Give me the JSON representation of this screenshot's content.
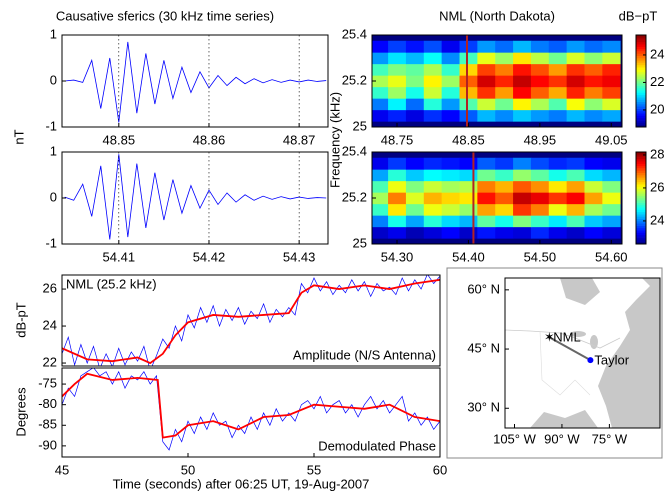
{
  "chart_data": [
    {
      "type": "line",
      "title": "Causative sferics (30 kHz time series)",
      "ylabel": "nT",
      "xlim": [
        48.8437,
        48.8732
      ],
      "ylim": [
        -1,
        1
      ],
      "xticks": [
        48.85,
        48.86,
        48.87
      ],
      "yticks": [
        -1,
        0,
        1
      ],
      "grid": true,
      "series": [
        {
          "color": "#0000ff",
          "x": [
            48.844,
            48.845,
            48.846,
            48.847,
            48.848,
            48.849,
            48.85,
            48.851,
            48.852,
            48.853,
            48.854,
            48.855,
            48.856,
            48.857,
            48.858,
            48.859,
            48.86,
            48.861,
            48.862,
            48.863,
            48.864,
            48.865,
            48.866,
            48.867,
            48.868,
            48.869,
            48.87,
            48.871,
            48.872,
            48.873
          ],
          "values": [
            0,
            0.02,
            -0.03,
            0.45,
            -0.6,
            0.5,
            -0.9,
            0.85,
            -0.7,
            0.6,
            -0.5,
            0.45,
            -0.38,
            0.3,
            -0.25,
            0.2,
            -0.15,
            0.12,
            -0.1,
            0.08,
            -0.06,
            0.05,
            -0.04,
            0.03,
            -0.03,
            0.02,
            -0.02,
            0.02,
            -0.01,
            0.01
          ]
        }
      ]
    },
    {
      "type": "line",
      "xlim": [
        54.4037,
        54.4332
      ],
      "ylim": [
        -1,
        1
      ],
      "xticks": [
        54.41,
        54.42,
        54.43
      ],
      "yticks": [
        -1,
        0,
        1
      ],
      "grid": true,
      "series": [
        {
          "color": "#0000ff",
          "x": [
            54.404,
            54.405,
            54.406,
            54.407,
            54.408,
            54.409,
            54.41,
            54.411,
            54.412,
            54.413,
            54.414,
            54.415,
            54.416,
            54.417,
            54.418,
            54.419,
            54.42,
            54.421,
            54.422,
            54.423,
            54.424,
            54.425,
            54.426,
            54.427,
            54.428,
            54.429,
            54.43,
            54.431,
            54.432,
            54.433
          ],
          "values": [
            0.02,
            -0.05,
            0.3,
            -0.4,
            0.7,
            -0.9,
            0.95,
            -0.85,
            0.75,
            -0.65,
            0.55,
            -0.48,
            0.4,
            -0.33,
            0.27,
            -0.22,
            0.17,
            -0.14,
            0.11,
            -0.09,
            0.07,
            -0.05,
            0.04,
            -0.03,
            0.03,
            -0.02,
            0.02,
            -0.01,
            0.01,
            0
          ]
        }
      ]
    },
    {
      "type": "heatmap",
      "title": "NML (North Dakota)",
      "colorbar_label": "dB−pT",
      "ylabel": "Frequency (kHz)",
      "xlim": [
        48.715,
        49.065
      ],
      "ylim": [
        25,
        25.4
      ],
      "xticks": [
        48.75,
        48.85,
        48.95,
        49.05
      ],
      "yticks": [
        25,
        25.2,
        25.4
      ],
      "clim": [
        18.76,
        25.45
      ],
      "cticks": [
        20,
        22,
        24
      ],
      "event_x": 48.848,
      "event_color": "#b22222",
      "x": [
        48.725,
        48.75,
        48.775,
        48.8,
        48.825,
        48.85,
        48.875,
        48.9,
        48.925,
        48.95,
        48.975,
        49.0,
        49.025,
        49.05
      ],
      "y": [
        25.05,
        25.1,
        25.15,
        25.2,
        25.25,
        25.3,
        25.35
      ],
      "z": [
        [
          19.5,
          19.8,
          19.4,
          19.9,
          19.6,
          20.2,
          20.8,
          20.5,
          20.9,
          20.6,
          20.4,
          20.8,
          20.5,
          20.7
        ],
        [
          20.4,
          21.2,
          20.3,
          21.5,
          20.6,
          21.8,
          22.6,
          22.0,
          23.0,
          22.4,
          21.8,
          22.9,
          22.2,
          22.7
        ],
        [
          21.6,
          22.3,
          21.4,
          22.6,
          21.5,
          23.4,
          24.3,
          23.6,
          24.6,
          24.0,
          23.5,
          24.4,
          23.8,
          24.2
        ],
        [
          22.4,
          22.8,
          22.1,
          23.0,
          22.3,
          24.0,
          24.9,
          24.4,
          25.0,
          24.6,
          24.3,
          24.9,
          24.5,
          24.7
        ],
        [
          21.7,
          22.1,
          21.9,
          22.4,
          21.6,
          23.2,
          24.2,
          23.8,
          24.5,
          24.1,
          23.6,
          24.3,
          24.0,
          24.4
        ],
        [
          20.6,
          21.1,
          20.8,
          21.3,
          20.5,
          21.7,
          22.8,
          22.3,
          23.1,
          22.5,
          22.0,
          22.7,
          22.2,
          22.6
        ],
        [
          19.6,
          20.0,
          19.7,
          20.1,
          19.5,
          20.0,
          20.6,
          20.3,
          20.8,
          20.4,
          20.2,
          20.6,
          20.3,
          20.5
        ]
      ]
    },
    {
      "type": "heatmap",
      "xlim": [
        54.265,
        54.615
      ],
      "ylim": [
        25,
        25.4
      ],
      "xticks": [
        {
          "value": 54.3,
          "label": "54.30"
        },
        {
          "value": 54.4,
          "label": "54.40"
        },
        {
          "value": 54.5,
          "label": "54.50"
        },
        {
          "value": 54.6,
          "label": "54.60"
        }
      ],
      "yticks": [
        25,
        25.2,
        25.4
      ],
      "clim": [
        22.6,
        28.18
      ],
      "cticks": [
        24,
        26,
        28
      ],
      "event_x": 54.407,
      "event_color": "#b22222",
      "x": [
        54.275,
        54.3,
        54.325,
        54.35,
        54.375,
        54.4,
        54.425,
        54.45,
        54.475,
        54.5,
        54.525,
        54.55,
        54.575,
        54.6
      ],
      "y": [
        25.05,
        25.1,
        25.15,
        25.2,
        25.25,
        25.3,
        25.35
      ],
      "z": [
        [
          23.0,
          23.2,
          22.9,
          23.1,
          23.3,
          23.0,
          23.4,
          23.2,
          23.1,
          23.5,
          23.2,
          23.0,
          23.3,
          23.1
        ],
        [
          24.0,
          24.8,
          24.2,
          24.9,
          24.5,
          24.3,
          25.2,
          24.8,
          25.4,
          25.0,
          24.6,
          25.1,
          24.4,
          24.2
        ],
        [
          25.0,
          26.2,
          25.3,
          26.0,
          25.8,
          25.5,
          26.6,
          26.3,
          27.2,
          26.8,
          26.0,
          26.5,
          25.6,
          25.3
        ],
        [
          25.6,
          26.8,
          25.9,
          26.5,
          26.3,
          26.2,
          27.4,
          27.0,
          27.8,
          27.6,
          27.2,
          27.5,
          26.6,
          26.0
        ],
        [
          25.1,
          26.0,
          25.4,
          25.8,
          25.6,
          25.7,
          26.8,
          26.5,
          27.0,
          26.7,
          26.2,
          26.6,
          25.8,
          25.4
        ],
        [
          24.2,
          24.9,
          24.4,
          24.7,
          24.6,
          24.5,
          25.3,
          25.0,
          25.5,
          25.2,
          24.8,
          25.1,
          24.5,
          24.3
        ],
        [
          23.2,
          23.6,
          23.3,
          23.5,
          23.4,
          23.3,
          23.8,
          23.6,
          24.0,
          23.7,
          23.5,
          23.6,
          23.3,
          23.2
        ]
      ]
    },
    {
      "type": "line",
      "label": "NML (25.2 kHz)",
      "annotation": "Amplitude (N/S Antenna)",
      "ylabel": "dB-pT",
      "xlim": [
        45,
        60
      ],
      "ylim": [
        21.84,
        26.76
      ],
      "yticks": [
        22,
        24,
        26
      ],
      "grid": false,
      "series": [
        {
          "color": "#0000ff",
          "width": 0.7,
          "x": [
            45,
            45.25,
            45.5,
            45.75,
            46,
            46.25,
            46.5,
            46.75,
            47,
            47.25,
            47.5,
            47.75,
            48,
            48.25,
            48.5,
            48.75,
            49,
            49.25,
            49.5,
            49.75,
            50,
            50.25,
            50.5,
            50.75,
            51,
            51.25,
            51.5,
            51.75,
            52,
            52.25,
            52.5,
            52.75,
            53,
            53.25,
            53.5,
            53.75,
            54,
            54.25,
            54.5,
            54.75,
            55,
            55.25,
            55.5,
            55.75,
            56,
            56.25,
            56.5,
            56.75,
            57,
            57.25,
            57.5,
            57.75,
            58,
            58.25,
            58.5,
            58.75,
            59,
            59.25,
            59.5,
            59.75,
            60
          ],
          "values": [
            22.5,
            23.4,
            21.9,
            23.0,
            22.0,
            22.9,
            21.7,
            22.5,
            21.8,
            22.8,
            21.9,
            22.6,
            22.1,
            22.9,
            21.6,
            22.4,
            23.3,
            22.8,
            24.0,
            23.2,
            24.6,
            23.9,
            25.0,
            24.2,
            25.1,
            24.0,
            24.9,
            24.3,
            25.0,
            24.1,
            24.8,
            24.4,
            25.2,
            24.2,
            24.9,
            24.5,
            25.0,
            24.6,
            26.3,
            25.8,
            26.6,
            25.9,
            26.4,
            25.7,
            26.2,
            25.8,
            26.5,
            25.9,
            26.4,
            25.6,
            26.3,
            25.9,
            26.1,
            25.7,
            26.6,
            25.9,
            26.5,
            26.0,
            26.8,
            26.3,
            26.7
          ]
        },
        {
          "color": "#ff0000",
          "width": 1.8,
          "x": [
            45,
            46,
            47,
            48,
            48.5,
            49,
            49.5,
            50,
            51,
            52,
            53,
            54,
            54.5,
            55,
            56,
            57,
            58,
            59,
            60
          ],
          "values": [
            22.8,
            22.2,
            22.1,
            22.3,
            22.0,
            22.5,
            23.5,
            24.2,
            24.6,
            24.5,
            24.6,
            24.7,
            25.8,
            26.2,
            26.0,
            26.2,
            26.0,
            26.3,
            26.5
          ]
        }
      ]
    },
    {
      "type": "line",
      "annotation": "Demodulated Phase",
      "ylabel": "Degrees",
      "xlabel": "Time (seconds) after 06:25 UT, 19-Aug-2007",
      "xlim": [
        45,
        60
      ],
      "ylim": [
        -92.7,
        -71.1
      ],
      "xticks": [
        45,
        50,
        55,
        60
      ],
      "yticks": [
        -90,
        -85,
        -80,
        -75
      ],
      "grid": false,
      "series": [
        {
          "color": "#0000ff",
          "width": 0.7,
          "x": [
            45,
            45.25,
            45.5,
            45.75,
            46,
            46.25,
            46.5,
            46.75,
            47,
            47.25,
            47.5,
            47.75,
            48,
            48.25,
            48.5,
            48.75,
            49,
            49.25,
            49.5,
            49.75,
            50,
            50.25,
            50.5,
            50.75,
            51,
            51.25,
            51.5,
            51.75,
            52,
            52.25,
            52.5,
            52.75,
            53,
            53.25,
            53.5,
            53.75,
            54,
            54.25,
            54.5,
            54.75,
            55,
            55.25,
            55.5,
            55.75,
            56,
            56.25,
            56.5,
            56.75,
            57,
            57.25,
            57.5,
            57.75,
            58,
            58.25,
            58.5,
            58.75,
            59,
            59.25,
            59.5,
            59.75,
            60
          ],
          "values": [
            -80,
            -76,
            -78,
            -73,
            -72,
            -71,
            -73,
            -72,
            -75,
            -72,
            -76,
            -73,
            -74,
            -72,
            -75,
            -73,
            -89,
            -91,
            -86,
            -89,
            -84,
            -87,
            -83,
            -86,
            -82,
            -85,
            -84,
            -88,
            -85,
            -87,
            -83,
            -86,
            -82,
            -85,
            -81,
            -84,
            -82,
            -84,
            -80,
            -79,
            -81,
            -78,
            -82,
            -80,
            -79,
            -82,
            -80,
            -83,
            -80,
            -78,
            -81,
            -79,
            -82,
            -80,
            -78,
            -84,
            -82,
            -85,
            -83,
            -86,
            -84
          ]
        },
        {
          "color": "#ff0000",
          "width": 1.8,
          "x": [
            45,
            45.5,
            46,
            47,
            48,
            48.8,
            49,
            49.5,
            50,
            51,
            52,
            53,
            54,
            55,
            56,
            57,
            58,
            59,
            60
          ],
          "values": [
            -78,
            -75,
            -72.5,
            -74,
            -73.5,
            -74,
            -88,
            -87.5,
            -85,
            -84,
            -86,
            -83,
            -82.5,
            -80,
            -80.5,
            -81,
            -80,
            -83,
            -84
          ]
        }
      ]
    },
    {
      "type": "map",
      "xlim": [
        -108,
        -59
      ],
      "ylim": [
        25,
        63
      ],
      "xticks": [
        {
          "value": -105,
          "label": "105° W"
        },
        {
          "value": -90,
          "label": "90° W"
        },
        {
          "value": -75,
          "label": "75° W"
        }
      ],
      "yticks": [
        {
          "value": 60,
          "label": "60° N"
        },
        {
          "value": 45,
          "label": "45° N"
        },
        {
          "value": 30,
          "label": "30° N"
        }
      ],
      "points": [
        {
          "label": "NML",
          "lon": -94,
          "lat": 48,
          "color": "#ff0000",
          "marker": "star"
        },
        {
          "label": "Taylor",
          "lon": -81,
          "lat": 42.2,
          "color": "#0000ff",
          "marker": "dot"
        }
      ]
    }
  ]
}
